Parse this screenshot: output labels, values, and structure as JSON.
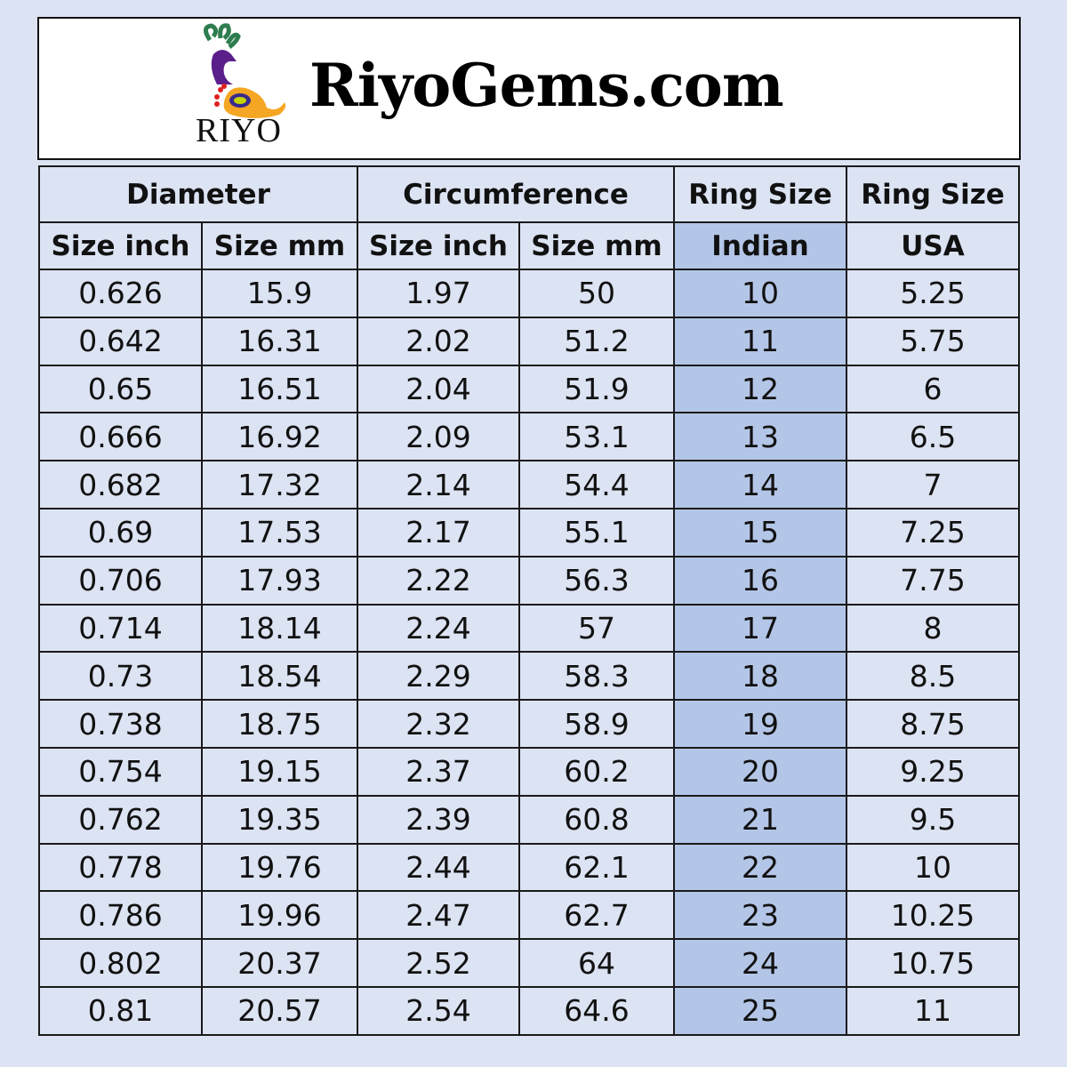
{
  "brand": {
    "logo_text": "RIYO",
    "site": "RiyoGems.com"
  },
  "colors": {
    "background": "#dce3f3",
    "indian_highlight": "#b4c6e7"
  },
  "headers": {
    "group": [
      "Diameter",
      "Circumference",
      "Ring Size",
      "Ring Size"
    ],
    "sub": [
      "Size inch",
      "Size mm",
      "Size inch",
      "Size mm",
      "Indian",
      "USA"
    ]
  },
  "rows": [
    [
      "0.626",
      "15.9",
      "1.97",
      "50",
      "10",
      "5.25"
    ],
    [
      "0.642",
      "16.31",
      "2.02",
      "51.2",
      "11",
      "5.75"
    ],
    [
      "0.65",
      "16.51",
      "2.04",
      "51.9",
      "12",
      "6"
    ],
    [
      "0.666",
      "16.92",
      "2.09",
      "53.1",
      "13",
      "6.5"
    ],
    [
      "0.682",
      "17.32",
      "2.14",
      "54.4",
      "14",
      "7"
    ],
    [
      "0.69",
      "17.53",
      "2.17",
      "55.1",
      "15",
      "7.25"
    ],
    [
      "0.706",
      "17.93",
      "2.22",
      "56.3",
      "16",
      "7.75"
    ],
    [
      "0.714",
      "18.14",
      "2.24",
      "57",
      "17",
      "8"
    ],
    [
      "0.73",
      "18.54",
      "2.29",
      "58.3",
      "18",
      "8.5"
    ],
    [
      "0.738",
      "18.75",
      "2.32",
      "58.9",
      "19",
      "8.75"
    ],
    [
      "0.754",
      "19.15",
      "2.37",
      "60.2",
      "20",
      "9.25"
    ],
    [
      "0.762",
      "19.35",
      "2.39",
      "60.8",
      "21",
      "9.5"
    ],
    [
      "0.778",
      "19.76",
      "2.44",
      "62.1",
      "22",
      "10"
    ],
    [
      "0.786",
      "19.96",
      "2.47",
      "62.7",
      "23",
      "10.25"
    ],
    [
      "0.802",
      "20.37",
      "2.52",
      "64",
      "24",
      "10.75"
    ],
    [
      "0.81",
      "20.57",
      "2.54",
      "64.6",
      "25",
      "11"
    ]
  ]
}
